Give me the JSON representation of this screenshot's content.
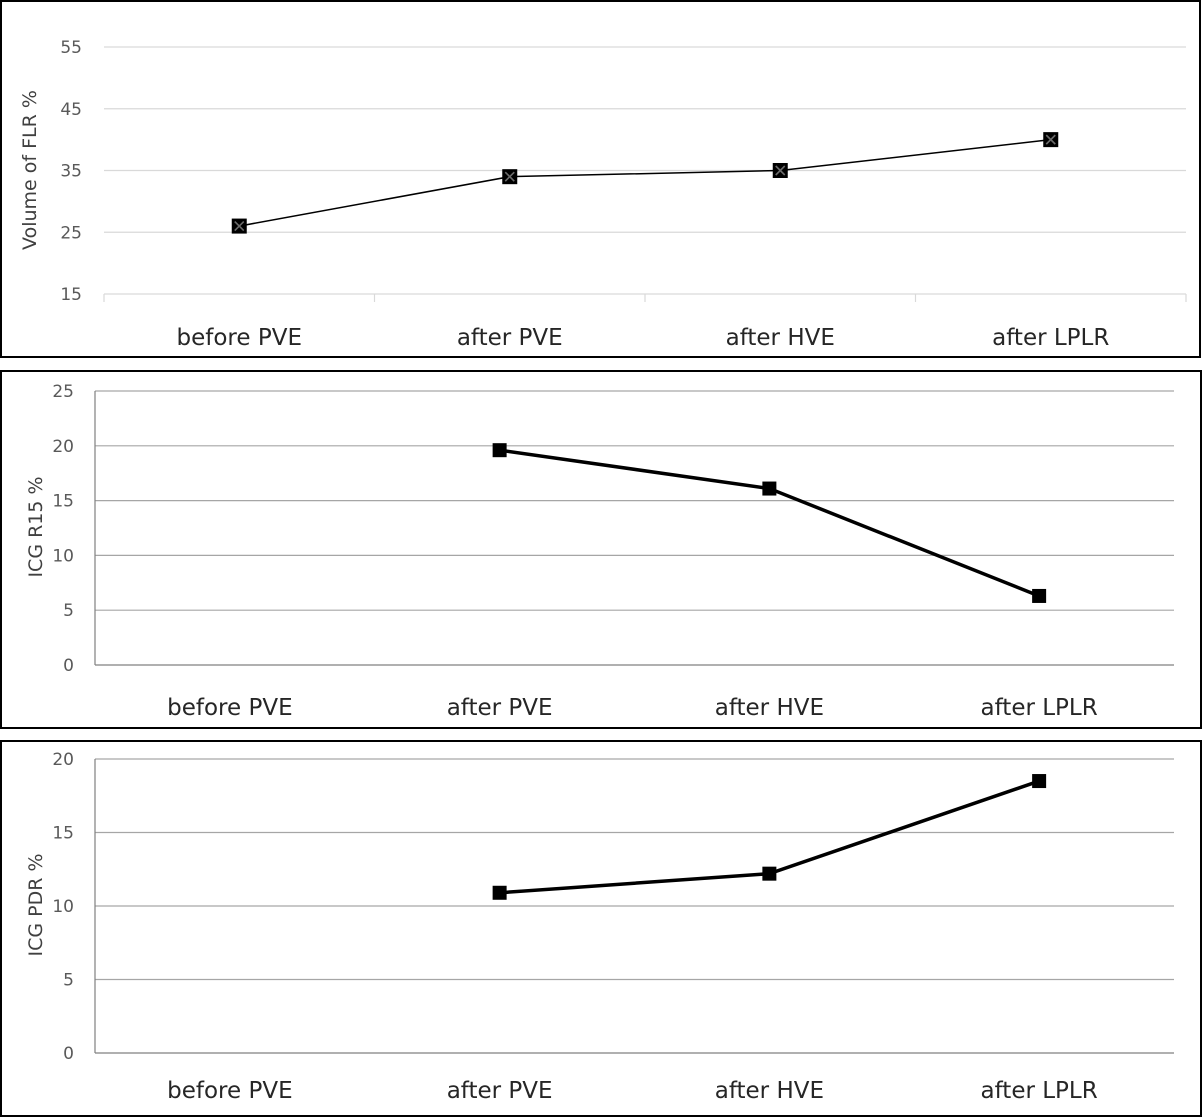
{
  "chart_data": [
    {
      "type": "line",
      "title": "",
      "xlabel": "",
      "ylabel": "Volume of FLR %",
      "categories": [
        "before PVE",
        "after PVE",
        "after HVE",
        "after LPLR"
      ],
      "yticks": [
        "15",
        "25",
        "35",
        "45",
        "55"
      ],
      "ylim": [
        15,
        55
      ],
      "grid": true,
      "legend": "none",
      "series": [
        {
          "values": [
            26,
            34,
            35,
            40
          ],
          "color": "#000000",
          "marker": "x-square"
        }
      ]
    },
    {
      "type": "line",
      "title": "",
      "xlabel": "",
      "ylabel": "ICG R15 %",
      "categories": [
        "before PVE",
        "after PVE",
        "after HVE",
        "after LPLR"
      ],
      "yticks": [
        "0",
        "5",
        "10",
        "15",
        "20",
        "25"
      ],
      "ylim": [
        0,
        25
      ],
      "grid": true,
      "legend": "none",
      "series": [
        {
          "values": [
            null,
            19.6,
            16.1,
            6.3
          ],
          "color": "#000000",
          "marker": "square"
        }
      ]
    },
    {
      "type": "line",
      "title": "",
      "xlabel": "",
      "ylabel": "ICG PDR %",
      "categories": [
        "before PVE",
        "after PVE",
        "after HVE",
        "after LPLR"
      ],
      "yticks": [
        "0",
        "5",
        "10",
        "15",
        "20"
      ],
      "ylim": [
        0,
        20
      ],
      "grid": true,
      "legend": "none",
      "series": [
        {
          "values": [
            null,
            10.9,
            12.2,
            18.5
          ],
          "color": "#000000",
          "marker": "square"
        }
      ]
    }
  ]
}
